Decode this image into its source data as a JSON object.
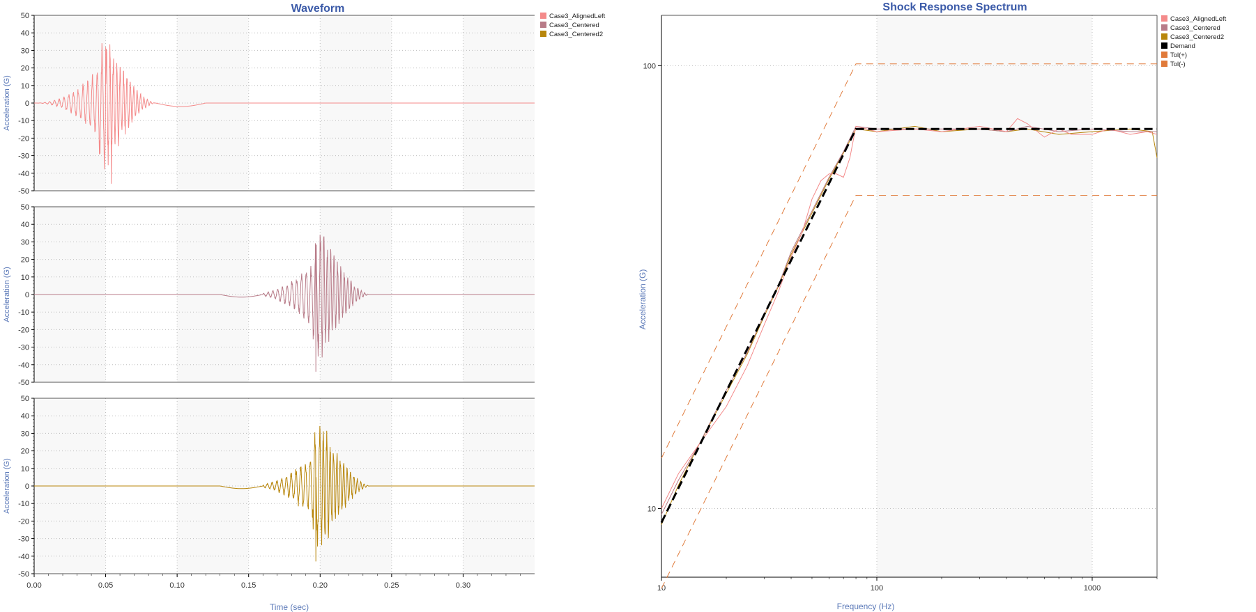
{
  "colors": {
    "title": "#3b5aa8",
    "axis_label": "#5b79b8",
    "tick_text": "#333333",
    "plot_bg": "#f8f8f8",
    "grid": "#bdbdbd",
    "case3_alignedleft": "#f48a8a",
    "case3_centered": "#b87b88",
    "case3_centered2": "#b8860b",
    "demand": "#000000",
    "tolerance": "#e07a3a"
  },
  "waveform": {
    "title": "Waveform",
    "xlabel": "Time (sec)",
    "ylabel": "Acceleration (G)",
    "yticks": [
      "50",
      "40",
      "30",
      "20",
      "10",
      "0",
      "-10",
      "-20",
      "-30",
      "-40",
      "-50"
    ],
    "xticks": [
      "0.00",
      "0.05",
      "0.10",
      "0.15",
      "0.20",
      "0.25",
      "0.30"
    ],
    "legend": [
      {
        "label": "Case3_AlignedLeft",
        "color": "#f48a8a"
      },
      {
        "label": "Case3_Centered",
        "color": "#b87b88"
      },
      {
        "label": "Case3_Centered2",
        "color": "#b8860b"
      }
    ]
  },
  "srs": {
    "title": "Shock Response Spectrum",
    "xlabel": "Frequency (Hz)",
    "ylabel": "Acceleration (G)",
    "yticks": [
      "100",
      "10"
    ],
    "xticks": [
      "10",
      "100",
      "1000"
    ],
    "legend": [
      {
        "label": "Case3_AlignedLeft",
        "color": "#f48a8a"
      },
      {
        "label": "Case3_Centered",
        "color": "#b87b88"
      },
      {
        "label": "Case3_Centered2",
        "color": "#b8860b"
      },
      {
        "label": "Demand",
        "color": "#000000"
      },
      {
        "label": "Tol(+)",
        "color": "#e07a3a"
      },
      {
        "label": "Tol(-)",
        "color": "#e07a3a"
      }
    ]
  },
  "chart_data": [
    {
      "type": "line",
      "title": "Waveform",
      "xlabel": "Time (sec)",
      "ylabel": "Acceleration (G)",
      "xlim": [
        0,
        0.35
      ],
      "ylim": [
        -50,
        50
      ],
      "grid": true,
      "legend_placement": "top-right",
      "subplots": 3,
      "series": [
        {
          "name": "Case3_AlignedLeft",
          "subplot": 0,
          "center": 0.05,
          "peaks": {
            "max": 32,
            "min": -46
          },
          "x": [
            0.0,
            0.03,
            0.035,
            0.04,
            0.045,
            0.05,
            0.053,
            0.055,
            0.06,
            0.065,
            0.07,
            0.075,
            0.08,
            0.09,
            0.1,
            0.12,
            0.15,
            0.2,
            0.25,
            0.3,
            0.35
          ],
          "y": [
            0,
            0,
            -5,
            -37,
            25,
            32,
            -46,
            -20,
            25,
            -5,
            15,
            8,
            5,
            0,
            -2,
            -1,
            0,
            0,
            0,
            0,
            0
          ]
        },
        {
          "name": "Case3_Centered",
          "subplot": 1,
          "center": 0.2,
          "peaks": {
            "max": 34,
            "min": -44
          },
          "x": [
            0.0,
            0.1,
            0.14,
            0.16,
            0.18,
            0.185,
            0.19,
            0.195,
            0.2,
            0.205,
            0.21,
            0.215,
            0.22,
            0.23,
            0.25,
            0.3,
            0.35
          ],
          "y": [
            0,
            0,
            -1,
            -2,
            10,
            20,
            27,
            -44,
            34,
            -30,
            10,
            -18,
            -3,
            0,
            0,
            0,
            0
          ]
        },
        {
          "name": "Case3_Centered2",
          "subplot": 2,
          "center": 0.2,
          "peaks": {
            "max": 32,
            "min": -43
          },
          "x": [
            0.0,
            0.12,
            0.14,
            0.16,
            0.18,
            0.185,
            0.19,
            0.195,
            0.2,
            0.205,
            0.21,
            0.215,
            0.22,
            0.23,
            0.25,
            0.3,
            0.35
          ],
          "y": [
            0,
            0,
            -1,
            -2,
            10,
            24,
            20,
            -43,
            32,
            -30,
            9,
            17,
            -3,
            -1,
            0,
            0,
            0
          ]
        }
      ]
    },
    {
      "type": "line",
      "title": "Shock Response Spectrum",
      "xlabel": "Frequency (Hz)",
      "ylabel": "Acceleration (G)",
      "xscale": "log",
      "yscale": "log",
      "xlim": [
        10,
        2000
      ],
      "ylim": [
        7,
        130
      ],
      "grid": true,
      "legend_placement": "top-right",
      "series": [
        {
          "name": "Demand",
          "style": "dashed",
          "x": [
            10,
            80,
            2000
          ],
          "y": [
            9.3,
            72,
            72
          ]
        },
        {
          "name": "Tol(+)",
          "style": "dashed",
          "x": [
            10,
            80,
            2000
          ],
          "y": [
            13,
            101,
            101
          ]
        },
        {
          "name": "Tol(-)",
          "style": "dashed",
          "x": [
            10,
            80,
            2000
          ],
          "y": [
            6.6,
            51,
            51
          ]
        },
        {
          "name": "Case3_AlignedLeft",
          "x": [
            10,
            12,
            15,
            20,
            25,
            30,
            35,
            40,
            45,
            50,
            55,
            60,
            65,
            70,
            75,
            80,
            90,
            100,
            150,
            200,
            300,
            400,
            450,
            500,
            600,
            700,
            800,
            1000,
            1200,
            1500,
            1800,
            2000
          ],
          "y": [
            10,
            12,
            14,
            17,
            21,
            26,
            31,
            37,
            42,
            50,
            55,
            57,
            57,
            56,
            62,
            73,
            72,
            71,
            72,
            71,
            73,
            71,
            76,
            74,
            69,
            72,
            70,
            70,
            72,
            70,
            71,
            70
          ]
        },
        {
          "name": "Case3_Centered",
          "x": [
            10,
            12,
            15,
            20,
            25,
            30,
            35,
            40,
            50,
            60,
            70,
            80,
            100,
            150,
            200,
            300,
            400,
            500,
            700,
            1000,
            1500,
            2000
          ],
          "y": [
            9.7,
            11.6,
            14,
            18.5,
            22.5,
            27.5,
            32,
            38,
            47,
            56,
            64,
            73,
            72,
            72,
            72,
            72,
            71,
            73,
            71,
            72,
            71,
            71
          ]
        },
        {
          "name": "Case3_Centered2",
          "x": [
            10,
            12,
            15,
            20,
            25,
            30,
            35,
            40,
            50,
            60,
            70,
            80,
            100,
            150,
            200,
            300,
            400,
            500,
            700,
            1000,
            1500,
            1900,
            2000
          ],
          "y": [
            9.2,
            11.3,
            14,
            18.2,
            22.3,
            27.2,
            31.8,
            37.5,
            46.5,
            55.5,
            63.5,
            72,
            71,
            73,
            71,
            72,
            71,
            72,
            70,
            71,
            72,
            71,
            62
          ]
        }
      ]
    }
  ]
}
